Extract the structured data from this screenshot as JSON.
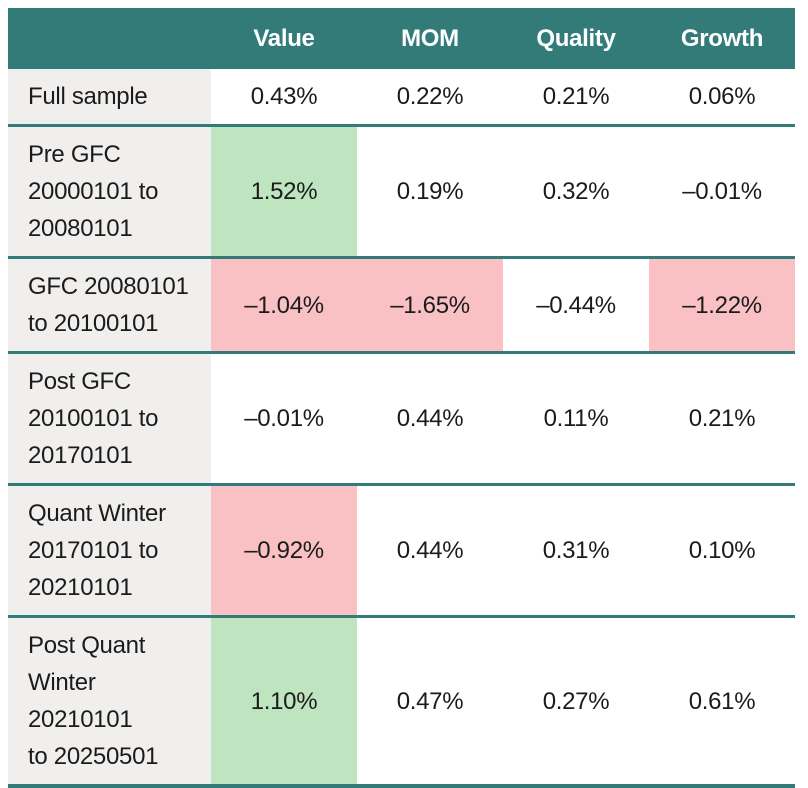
{
  "chart_data": {
    "type": "table",
    "columns": [
      "Value",
      "MOM",
      "Quality",
      "Growth"
    ],
    "rows": [
      {
        "label": "Full sample",
        "values": [
          "0.43%",
          "0.22%",
          "0.21%",
          "0.06%"
        ],
        "highlights": [
          null,
          null,
          null,
          null
        ]
      },
      {
        "label": "Pre GFC\n20000101 to\n20080101",
        "values": [
          "1.52%",
          "0.19%",
          "0.32%",
          "–0.01%"
        ],
        "highlights": [
          "green",
          null,
          null,
          null
        ]
      },
      {
        "label": "GFC 20080101\nto 20100101",
        "values": [
          "–1.04%",
          "–1.65%",
          "–0.44%",
          "–1.22%"
        ],
        "highlights": [
          "red",
          "red",
          null,
          "red"
        ]
      },
      {
        "label": "Post GFC\n20100101 to\n20170101",
        "values": [
          "–0.01%",
          "0.44%",
          "0.11%",
          "0.21%"
        ],
        "highlights": [
          null,
          null,
          null,
          null
        ]
      },
      {
        "label": "Quant Winter\n20170101 to\n20210101",
        "values": [
          "–0.92%",
          "0.44%",
          "0.31%",
          "0.10%"
        ],
        "highlights": [
          "red",
          null,
          null,
          null
        ]
      },
      {
        "label": "Post Quant\nWinter 20210101\nto 20250501",
        "values": [
          "1.10%",
          "0.47%",
          "0.27%",
          "0.61%"
        ],
        "highlights": [
          "green",
          null,
          null,
          null
        ]
      }
    ],
    "layout_hints": {
      "grid": "teal horizontal row dividers",
      "header_position": "top"
    }
  },
  "colors": {
    "header_bg": "#337b79",
    "header_text": "#ffffff",
    "row_divider": "#337b79",
    "positive_highlight": "#bee5bf",
    "negative_highlight": "#f9c1c4",
    "label_column_bg": "#f0efee",
    "body_text": "#1b1b1b"
  }
}
